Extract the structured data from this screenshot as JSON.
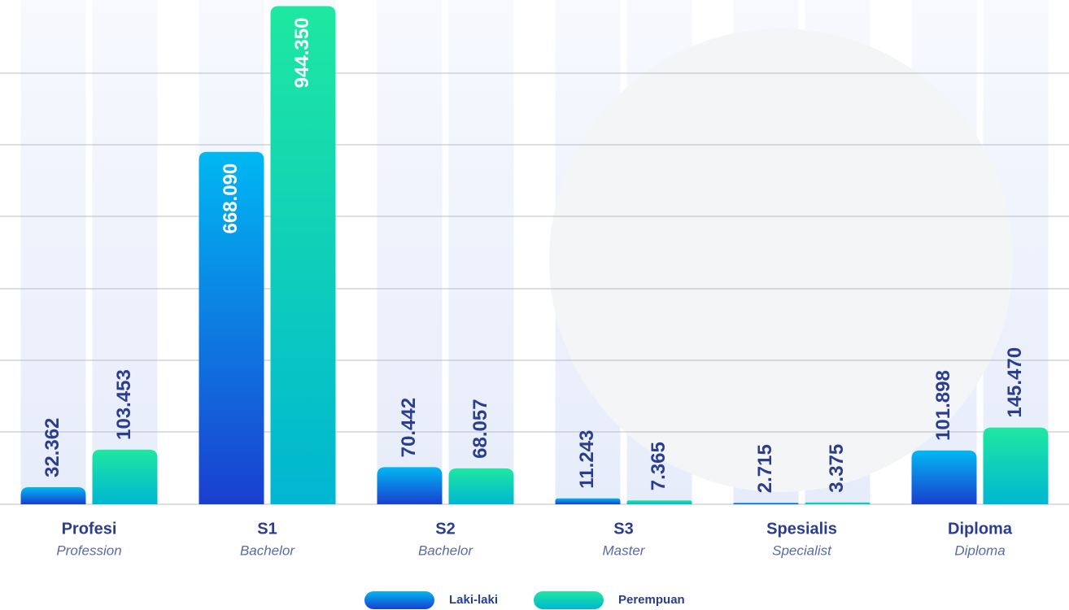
{
  "chart_data": {
    "type": "bar",
    "categories": [
      "Profesi",
      "S1",
      "S2",
      "S3",
      "Spesialis",
      "Diploma"
    ],
    "subcategories": [
      "Profession",
      "Bachelor",
      "Bachelor",
      "Master",
      "Specialist",
      "Diploma"
    ],
    "series": [
      {
        "name": "Laki-laki",
        "color": "#1a4fd8",
        "values": [
          32362,
          668090,
          70442,
          11243,
          2715,
          101898
        ],
        "value_labels": [
          "32.362",
          "668.090",
          "70.442",
          "11.243",
          "2.715",
          "101.898"
        ]
      },
      {
        "name": "Perempuan",
        "color": "#14dca8",
        "values": [
          103453,
          944350,
          68057,
          7365,
          3375,
          145470
        ],
        "value_labels": [
          "103.453",
          "944.350",
          "68.057",
          "7.365",
          "3.375",
          "145.470"
        ]
      }
    ],
    "ylim": [
      0,
      956000
    ]
  }
}
